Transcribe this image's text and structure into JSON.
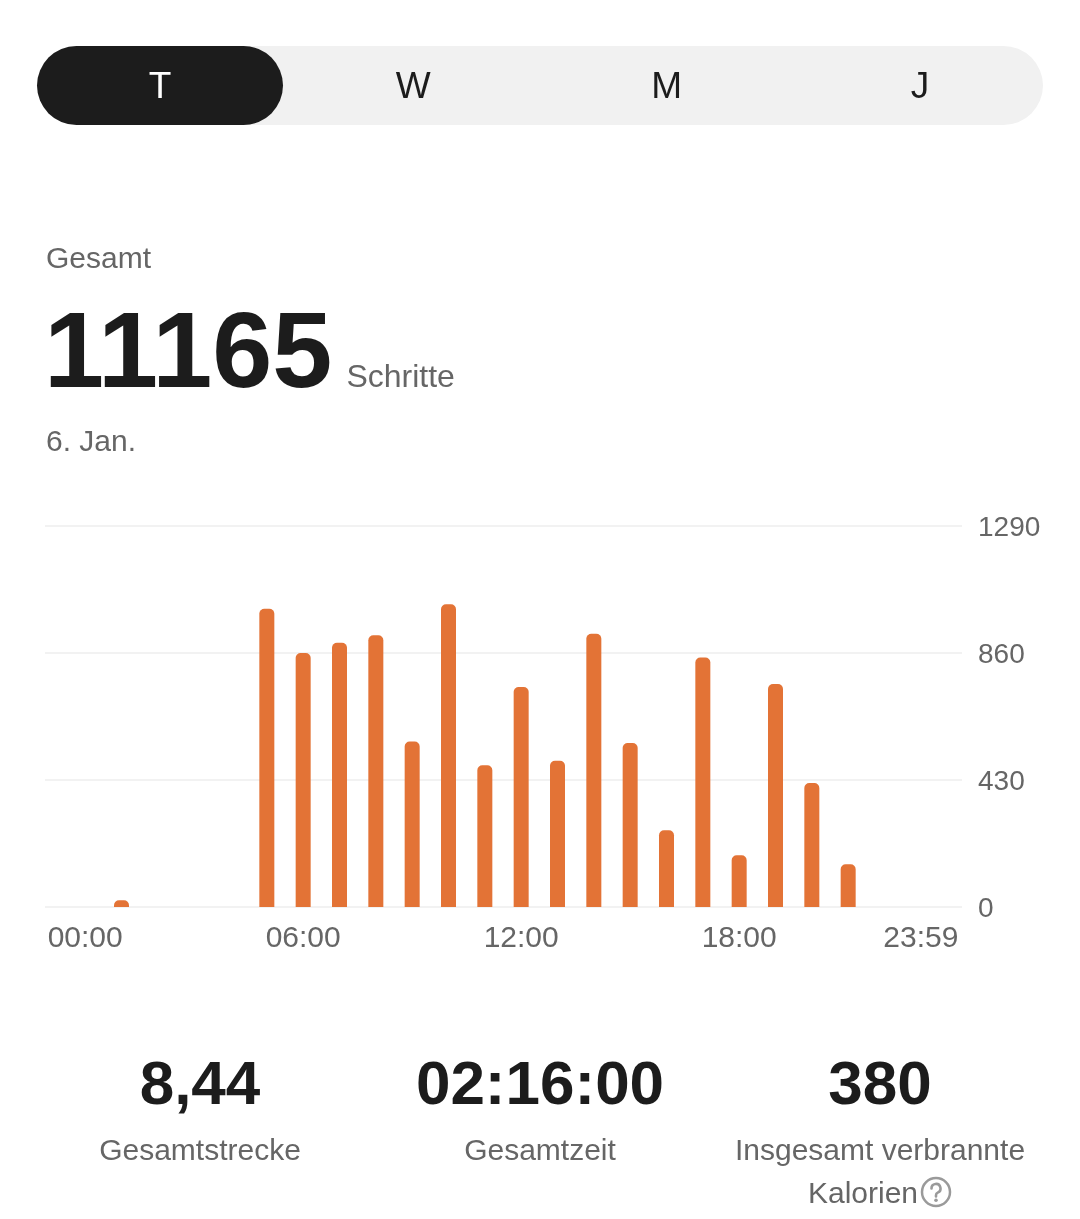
{
  "chart_data": {
    "type": "bar",
    "categories": [
      "00:00",
      null,
      null,
      null,
      null,
      null,
      "06:00",
      null,
      null,
      null,
      null,
      null,
      "12:00",
      null,
      null,
      null,
      null,
      null,
      "18:00",
      null,
      null,
      null,
      null,
      "23:59"
    ],
    "values": [
      null,
      23,
      null,
      null,
      null,
      1010,
      860,
      895,
      920,
      560,
      1025,
      480,
      745,
      495,
      925,
      555,
      260,
      845,
      175,
      755,
      420,
      145,
      null,
      null
    ],
    "color": "#e37336",
    "ylim": [
      0,
      1290
    ],
    "yticks": [
      0,
      430,
      860,
      1290
    ],
    "grid": "y",
    "annotations": [
      "T",
      "W",
      "M",
      "J",
      "Gesamt",
      "11165",
      "Schritte",
      "6. Jan.",
      "8,44",
      "Gesamtstrecke",
      "02:16:00",
      "Gesamtzeit",
      "380",
      "Insgesamt verbrannte Kalorien"
    ]
  }
}
